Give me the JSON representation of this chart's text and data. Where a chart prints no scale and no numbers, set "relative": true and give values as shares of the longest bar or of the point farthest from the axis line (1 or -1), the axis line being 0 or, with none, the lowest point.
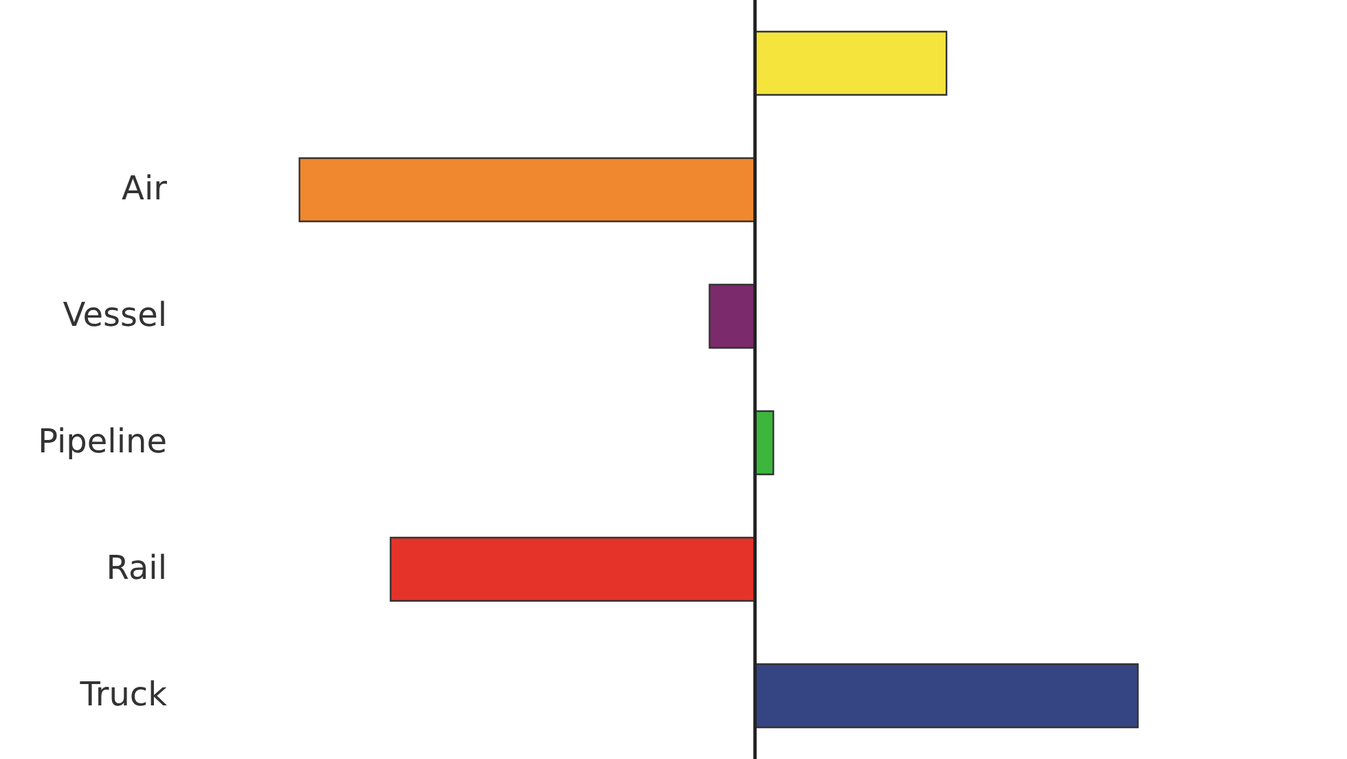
{
  "chart_data": {
    "type": "bar",
    "orientation": "horizontal",
    "relative": true,
    "tick_labels": "y",
    "categories": [
      null,
      "Air",
      "Vessel",
      "Pipeline",
      "Rail",
      "Truck"
    ],
    "values": [
      0.42,
      -1,
      -0.1,
      0.04,
      -0.8,
      0.84
    ],
    "colors": [
      "#f5e43c",
      "#f0882f",
      "#7b2a6c",
      "#3cb63c",
      "#e5332a",
      "#354483"
    ]
  }
}
